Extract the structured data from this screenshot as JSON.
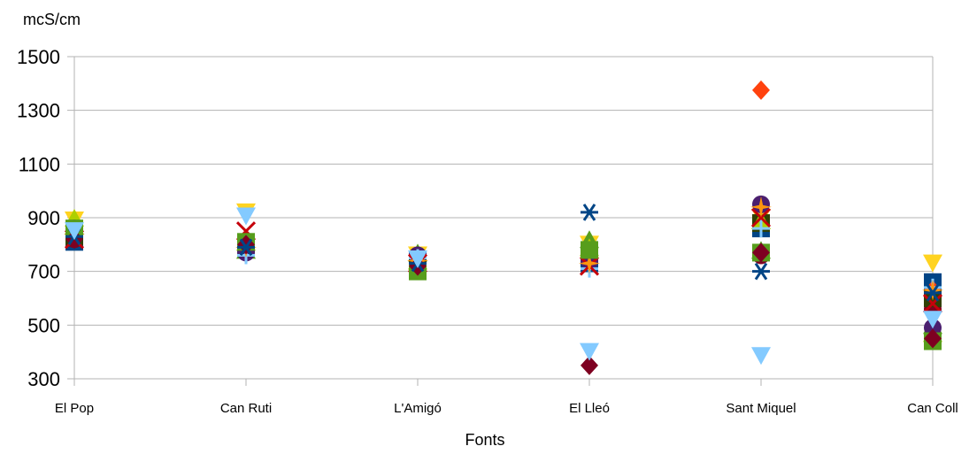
{
  "chart_data": {
    "type": "scatter",
    "title": "",
    "ylabel": "mcS/cm",
    "xlabel": "Fonts",
    "categories": [
      "El Pop",
      "Can Ruti",
      "L'Amigó",
      "El Lleó",
      "Sant Miquel",
      "Can Coll"
    ],
    "ylim": [
      300,
      1500
    ],
    "yticks": [
      300,
      500,
      700,
      900,
      1100,
      1300,
      1500
    ],
    "grid": true,
    "legend": "none",
    "series": [
      {
        "marker": "square",
        "color": "#004586",
        "values": [
          810,
          800,
          740,
          730,
          860,
          660
        ]
      },
      {
        "marker": "diamond",
        "color": "#ff420e",
        "values": [
          840,
          820,
          720,
          780,
          1375,
          630
        ]
      },
      {
        "marker": "triangle-down",
        "color": "#ffd320",
        "values": [
          890,
          920,
          760,
          800,
          900,
          730
        ]
      },
      {
        "marker": "triangle-up",
        "color": "#579d1c",
        "values": [
          870,
          780,
          770,
          820,
          780,
          500
        ]
      },
      {
        "marker": "circle",
        "color": "#7e0021",
        "values": [
          820,
          790,
          750,
          750,
          760,
          560
        ]
      },
      {
        "marker": "square",
        "color": "#314004",
        "values": [
          830,
          800,
          730,
          770,
          880,
          600
        ]
      },
      {
        "marker": "triangle-up",
        "color": "#aecf00",
        "values": [
          900,
          810,
          740,
          790,
          890,
          470
        ]
      },
      {
        "marker": "circle",
        "color": "#4b1f6f",
        "values": [
          860,
          770,
          760,
          740,
          950,
          490
        ]
      },
      {
        "marker": "plus",
        "color": "#83caff",
        "values": [
          850,
          760,
          750,
          710,
          860,
          640
        ]
      },
      {
        "marker": "x",
        "color": "#c5000b",
        "values": [
          820,
          850,
          730,
          720,
          900,
          580
        ]
      },
      {
        "marker": "star",
        "color": "#ff950e",
        "values": [
          840,
          790,
          740,
          730,
          940,
          630
        ]
      },
      {
        "marker": "square",
        "color": "#579d1c",
        "values": [
          860,
          810,
          700,
          780,
          770,
          440
        ]
      },
      {
        "marker": "diamond",
        "color": "#7e0021",
        "values": [
          820,
          800,
          720,
          350,
          770,
          450
        ]
      },
      {
        "marker": "asterisk",
        "color": "#004586",
        "values": [
          830,
          790,
          730,
          920,
          700,
          620
        ]
      },
      {
        "marker": "triangle-down",
        "color": "#83caff",
        "values": [
          850,
          905,
          745,
          400,
          385,
          520
        ]
      }
    ]
  }
}
